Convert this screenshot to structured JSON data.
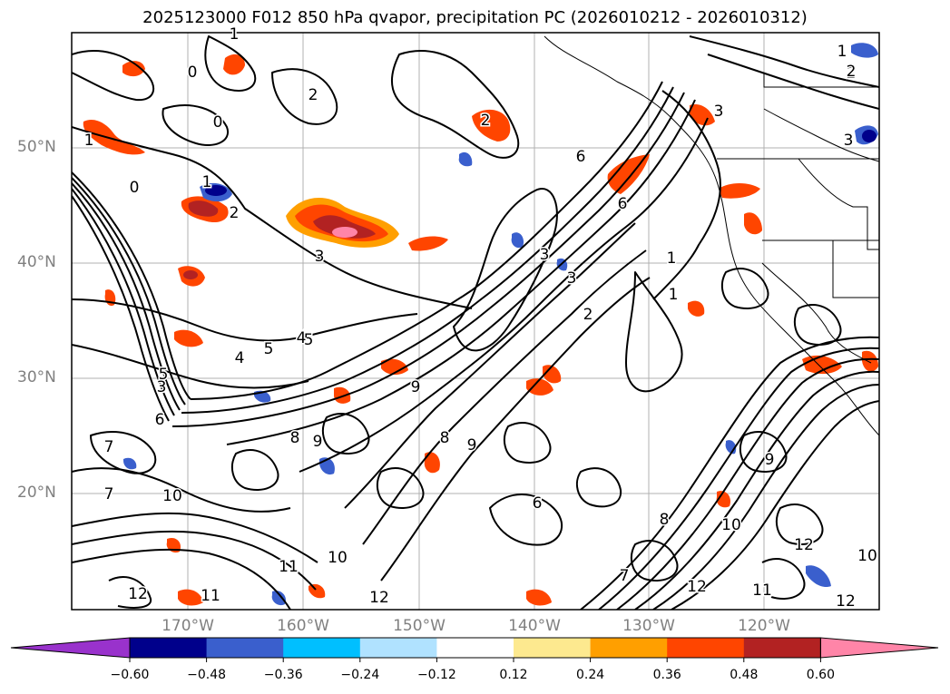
{
  "title": "2025123000 F012 850 hPa qvapor, precipitation PC (2026010212 - 2026010312)",
  "map": {
    "region": "North-East Pacific Ocean",
    "lat_labels": [
      "50°N",
      "40°N",
      "30°N",
      "20°N"
    ],
    "lon_labels": [
      "170°W",
      "160°W",
      "150°W",
      "140°W",
      "130°W",
      "120°W"
    ],
    "contour_color": "#000000",
    "contour_labels": [
      "1",
      "0",
      "0",
      "1",
      "2",
      "1",
      "3",
      "0",
      "2",
      "3",
      "3",
      "2",
      "3",
      "5",
      "2",
      "6",
      "6",
      "3",
      "2",
      "1",
      "1",
      "4",
      "5",
      "4",
      "5",
      "6",
      "3",
      "7",
      "7",
      "8",
      "9",
      "9",
      "8",
      "9",
      "9",
      "10",
      "11",
      "10",
      "12",
      "8",
      "6",
      "7",
      "10",
      "12",
      "12",
      "11",
      "12",
      "11",
      "10",
      "12",
      "1",
      "2"
    ]
  },
  "colorbar": {
    "ticks": [
      "−0.60",
      "−0.48",
      "−0.36",
      "−0.24",
      "−0.12",
      "0.12",
      "0.24",
      "0.36",
      "0.48",
      "0.60"
    ],
    "colors": [
      "#9932cc",
      "#00008b",
      "#3a5fcd",
      "#00bfff",
      "#b0e2ff",
      "#ffffff",
      "#fde98f",
      "#ff9f00",
      "#ff4500",
      "#b22222",
      "#ff85a8"
    ]
  }
}
